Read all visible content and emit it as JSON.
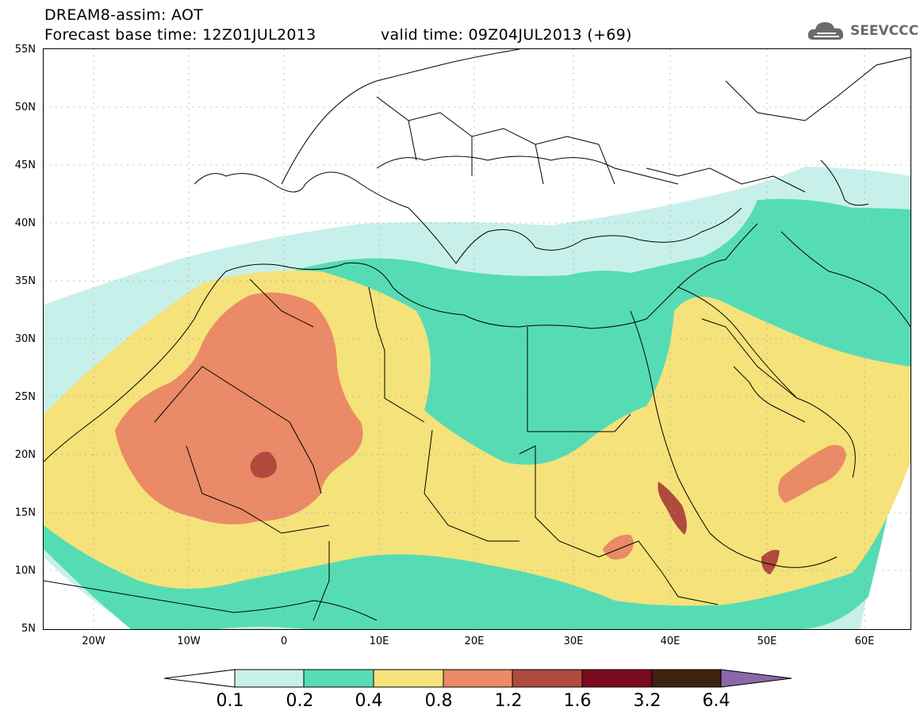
{
  "header": {
    "title": "DREAM8-assim: AOT",
    "base_time": "Forecast base time: 12Z01JUL2013",
    "valid_time": "valid time: 09Z04JUL2013 (+69)",
    "logo_text": "SEEVCCC",
    "logo_icon": "cloud-icon"
  },
  "map": {
    "lat_labels": [
      "55N",
      "50N",
      "45N",
      "40N",
      "35N",
      "30N",
      "25N",
      "20N",
      "15N",
      "10N",
      "5N"
    ],
    "lon_labels": [
      "20W",
      "10W",
      "0",
      "10E",
      "20E",
      "30E",
      "40E",
      "50E",
      "60E"
    ],
    "colors": {
      "c01": "#c8f0ea",
      "c02": "#56dcb4",
      "c04": "#f5e27a",
      "c08": "#ea8a66",
      "c12": "#b04a3e",
      "c16": "#7a0a1e",
      "c32": "#3e2210",
      "c64": "#8a68a8"
    }
  },
  "colorbar": {
    "labels": [
      "0.1",
      "0.2",
      "0.4",
      "0.8",
      "1.2",
      "1.6",
      "3.2",
      "6.4"
    ],
    "colors": [
      "#ffffff",
      "#c8f0ea",
      "#56dcb4",
      "#f5e27a",
      "#ea8a66",
      "#b04a3e",
      "#7a0a1e",
      "#3e2210",
      "#8a68a8"
    ]
  }
}
